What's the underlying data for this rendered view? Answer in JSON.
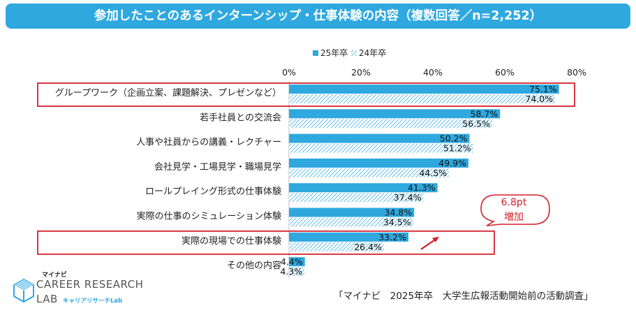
{
  "title": "参加したことのあるインターンシップ・仕事体験の内容（複数回答／n=2,252）",
  "chart_data": {
    "type": "bar",
    "orientation": "horizontal",
    "categories": [
      "グループワーク（企画立案、課題解決、プレゼンなど）",
      "若手社員との交流会",
      "人事や社員からの講義・レクチャー",
      "会社見学・工場見学・職場見学",
      "ロールプレイング形式の仕事体験",
      "実際の仕事のシミュレーション体験",
      "実際の現場での仕事体験",
      "その他の内容"
    ],
    "series": [
      {
        "name": "25年卒",
        "values": [
          75.1,
          58.7,
          50.2,
          49.9,
          41.3,
          34.8,
          33.2,
          4.4
        ],
        "labels": [
          "75.1%",
          "58.7%",
          "50.2%",
          "49.9%",
          "41.3%",
          "34.8%",
          "33.2%",
          "4.4%"
        ],
        "color": "#2fa8df",
        "pattern": "solid"
      },
      {
        "name": "24年卒",
        "values": [
          74.0,
          56.5,
          51.2,
          44.5,
          37.4,
          34.5,
          26.4,
          4.3
        ],
        "labels": [
          "74.0%",
          "56.5%",
          "51.2%",
          "44.5%",
          "37.4%",
          "34.5%",
          "26.4%",
          "4.3%"
        ],
        "color": "#6fc3ea",
        "pattern": "hatched"
      }
    ],
    "xlim": [
      0,
      80
    ],
    "xticks": [
      0,
      20,
      40,
      60,
      80
    ],
    "xtick_labels": [
      "0%",
      "20%",
      "40%",
      "60%",
      "80%"
    ],
    "legend_position": "top-center",
    "highlighted_categories": [
      0,
      6
    ]
  },
  "callout": {
    "line1": "6.8pt",
    "line2": "増加"
  },
  "source": "「マイナビ　2025年卒　大学生広報活動開始前の活動調査」",
  "logo": {
    "brand": "マイナビ",
    "name_line1": "CAREER RESEARCH",
    "name_line2": "LAB",
    "sub": "キャリアリサーチLab"
  },
  "colors": {
    "accent": "#2fa8df",
    "highlight_border": "#d41f2d",
    "text": "#222222"
  }
}
